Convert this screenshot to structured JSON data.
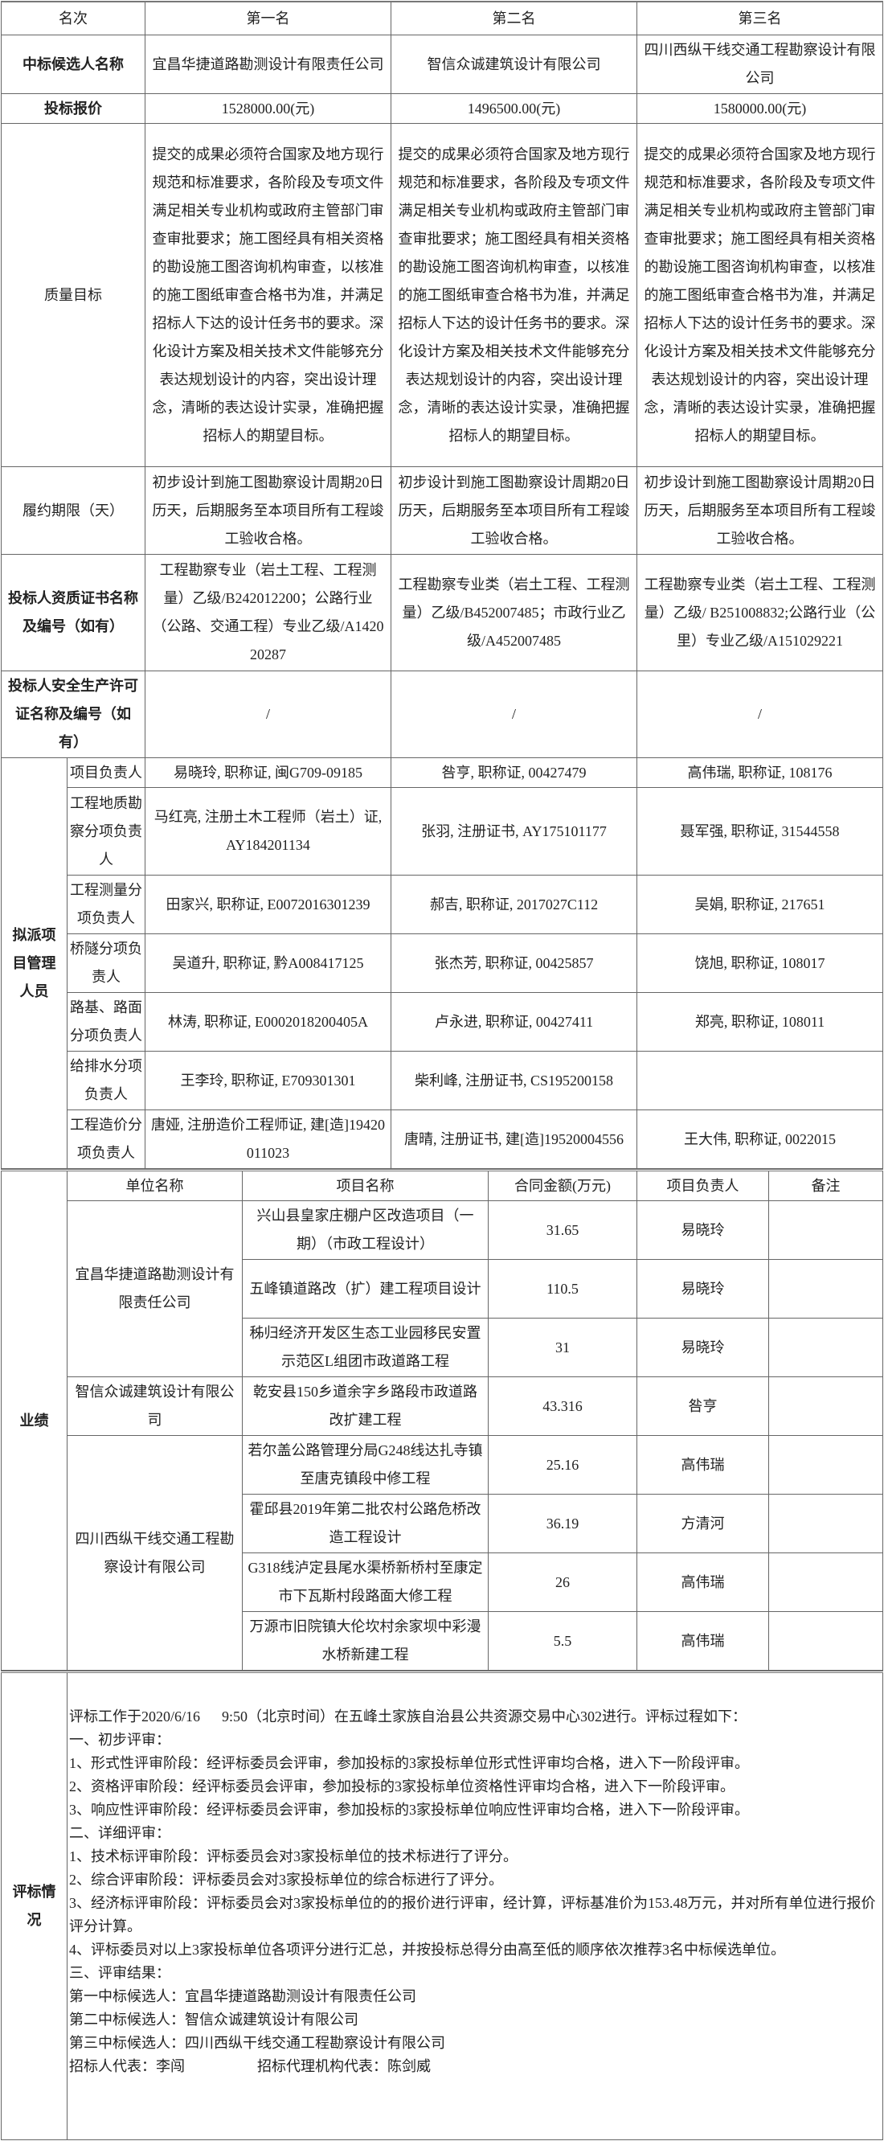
{
  "header": {
    "rank_label": "名次",
    "ranks": [
      "第一名",
      "第二名",
      "第三名"
    ]
  },
  "rows": {
    "candidate": {
      "label": "中标候选人名称",
      "values": [
        "宜昌华捷道路勘测设计有限责任公司",
        "智信众诚建筑设计有限公司",
        "四川西纵干线交通工程勘察设计有限公司"
      ]
    },
    "price": {
      "label": "投标报价",
      "values": [
        "1528000.00(元)",
        "1496500.00(元)",
        "1580000.00(元)"
      ]
    },
    "quality": {
      "label": "质量目标",
      "values": [
        "提交的成果必须符合国家及地方现行规范和标准要求，各阶段及专项文件满足相关专业机构或政府主管部门审查审批要求；施工图经具有相关资格的勘设施工图咨询机构审查，以核准的施工图纸审查合格书为准，并满足招标人下达的设计任务书的要求。深化设计方案及相关技术文件能够充分表达规划设计的内容，突出设计理念，清晰的表达设计实录，准确把握招标人的期望目标。",
        "提交的成果必须符合国家及地方现行规范和标准要求，各阶段及专项文件满足相关专业机构或政府主管部门审查审批要求；施工图经具有相关资格的勘设施工图咨询机构审查，以核准的施工图纸审查合格书为准，并满足招标人下达的设计任务书的要求。深化设计方案及相关技术文件能够充分表达规划设计的内容，突出设计理念，清晰的表达设计实录，准确把握招标人的期望目标。",
        "提交的成果必须符合国家及地方现行规范和标准要求，各阶段及专项文件满足相关专业机构或政府主管部门审查审批要求；施工图经具有相关资格的勘设施工图咨询机构审查，以核准的施工图纸审查合格书为准，并满足招标人下达的设计任务书的要求。深化设计方案及相关技术文件能够充分表达规划设计的内容，突出设计理念，清晰的表达设计实录，准确把握招标人的期望目标。"
      ]
    },
    "period": {
      "label": "履约期限（天）",
      "values": [
        "初步设计到施工图勘察设计周期20日历天，后期服务至本项目所有工程竣工验收合格。",
        "初步设计到施工图勘察设计周期20日历天，后期服务至本项目所有工程竣工验收合格。",
        "初步设计到施工图勘察设计周期20日历天，后期服务至本项目所有工程竣工验收合格。"
      ]
    },
    "qualification": {
      "label": "投标人资质证书名称及编号（如有）",
      "values": [
        "工程勘察专业（岩土工程、工程测量）乙级/B242012200；公路行业（公路、交通工程）专业乙级/A142020287",
        "工程勘察专业类（岩土工程、工程测量）乙级/B452007485；市政行业乙级/A452007485",
        "工程勘察专业类（岩土工程、工程测量）乙级/ B251008832;公路行业（公里）专业乙级/A151029221"
      ]
    },
    "safety": {
      "label": "投标人安全生产许可证名称及编号（如有）",
      "values": [
        "/",
        "/",
        "/"
      ]
    }
  },
  "personnel": {
    "label": "拟派项目管理人员",
    "roles": [
      {
        "role": "项目负责人",
        "values": [
          "易晓玲, 职称证, 闽G709-09185",
          "咎亨, 职称证, 00427479",
          "高伟瑞, 职称证, 108176"
        ]
      },
      {
        "role": "工程地质勘察分项负责人",
        "values": [
          "马红亮, 注册土木工程师（岩土）证, AY184201134",
          "张羽, 注册证书, AY175101177",
          "聂军强, 职称证, 31544558"
        ]
      },
      {
        "role": "工程测量分项负责人",
        "values": [
          "田家兴, 职称证, E0072016301239",
          "郝吉, 职称证, 2017027C112",
          "吴娟, 职称证, 217651"
        ]
      },
      {
        "role": "桥隧分项负责人",
        "values": [
          "吴道升, 职称证, 黔A008417125",
          "张杰芳, 职称证, 00425857",
          "饶旭, 职称证, 108017"
        ]
      },
      {
        "role": "路基、路面分项负责人",
        "values": [
          "林涛, 职称证, E0002018200405A",
          "卢永进, 职称证, 00427411",
          "郑亮, 职称证, 108011"
        ]
      },
      {
        "role": "给排水分项负责人",
        "values": [
          "王李玲, 职称证, E709301301",
          "柴利峰, 注册证书, CS195200158",
          ""
        ]
      },
      {
        "role": "工程造价分项负责人",
        "values": [
          "唐娅, 注册造价工程师证, 建[造]19420011023",
          "唐晴, 注册证书, 建[造]19520004556",
          "王大伟, 职称证, 0022015"
        ]
      }
    ]
  },
  "performance": {
    "label": "业绩",
    "columns": [
      "单位名称",
      "项目名称",
      "合同金额(万元)",
      "项目负责人",
      "备注"
    ],
    "groups": [
      {
        "unit": "宜昌华捷道路勘测设计有限责任公司",
        "projects": [
          {
            "name": "兴山县皇家庄棚户区改造项目（一期）（市政工程设计）",
            "amount": "31.65",
            "manager": "易晓玲",
            "note": ""
          },
          {
            "name": "五峰镇道路改（扩）建工程项目设计",
            "amount": "110.5",
            "manager": "易晓玲",
            "note": ""
          },
          {
            "name": "秭归经济开发区生态工业园移民安置示范区L组团市政道路工程",
            "amount": "31",
            "manager": "易晓玲",
            "note": ""
          }
        ]
      },
      {
        "unit": "智信众诚建筑设计有限公司",
        "projects": [
          {
            "name": "乾安县150乡道余字乡路段市政道路改扩建工程",
            "amount": "43.316",
            "manager": "咎亨",
            "note": ""
          }
        ]
      },
      {
        "unit": "四川西纵干线交通工程勘察设计有限公司",
        "projects": [
          {
            "name": "若尔盖公路管理分局G248线达扎寺镇至唐克镇段中修工程",
            "amount": "25.16",
            "manager": "高伟瑞",
            "note": ""
          },
          {
            "name": "霍邱县2019年第二批农村公路危桥改造工程设计",
            "amount": "36.19",
            "manager": "方清河",
            "note": ""
          },
          {
            "name": "G318线泸定县尾水渠桥新桥村至康定市下瓦斯村段路面大修工程",
            "amount": "26",
            "manager": "高伟瑞",
            "note": ""
          },
          {
            "name": "万源市旧院镇大伦坎村余家坝中彩漫水桥新建工程",
            "amount": "5.5",
            "manager": "高伟瑞",
            "note": ""
          }
        ]
      }
    ]
  },
  "evaluation": {
    "label": "评标情况",
    "lines": [
      "评标工作于2020/6/16      9:50（北京时间）在五峰土家族自治县公共资源交易中心302进行。评标过程如下：",
      "一、初步评审：",
      "1、形式性评审阶段：经评标委员会评审，参加投标的3家投标单位形式性评审均合格，进入下一阶段评审。",
      "2、资格评审阶段：经评标委员会评审，参加投标的3家投标单位资格性评审均合格，进入下一阶段评审。",
      "3、响应性评审阶段：经评标委员会评审，参加投标的3家投标单位响应性评审均合格，进入下一阶段评审。",
      "二、详细评审：",
      "1、技术标评审阶段：评标委员会对3家投标单位的技术标进行了评分。",
      "2、综合评审阶段：评标委员会对3家投标单位的综合标进行了评分。",
      "3、经济标评审阶段：评标委员会对3家投标单位的的报价进行评审，经计算，评标基准价为153.48万元，并对所有单位进行报价评分计算。",
      "4、评标委员对以上3家投标单位各项评分进行汇总，并按投标总得分由高至低的顺序依次推荐3名中标候选单位。",
      "三、评审结果：",
      "第一中标候选人：宜昌华捷道路勘测设计有限责任公司",
      "第二中标候选人：智信众诚建筑设计有限公司",
      "第三中标候选人：四川西纵干线交通工程勘察设计有限公司",
      "招标人代表：李闯                    招标代理机构代表：陈剑威"
    ]
  }
}
